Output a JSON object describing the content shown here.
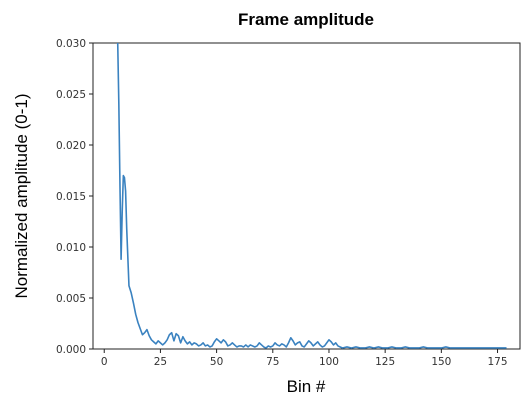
{
  "chart_data": {
    "type": "line",
    "title": "Frame amplitude",
    "xlabel": "Bin #",
    "ylabel": "Normalized amplitude (0-1)",
    "xlim": [
      -5,
      185
    ],
    "ylim": [
      0,
      0.03
    ],
    "xticks": [
      0,
      25,
      50,
      75,
      100,
      125,
      150,
      175
    ],
    "xtick_labels": [
      "0",
      "25",
      "50",
      "75",
      "100",
      "125",
      "150",
      "175"
    ],
    "yticks": [
      0,
      0.005,
      0.01,
      0.015,
      0.02,
      0.025,
      0.03
    ],
    "ytick_labels": [
      "0.000",
      "0.005",
      "0.010",
      "0.015",
      "0.020",
      "0.025",
      "0.030"
    ],
    "grid": false,
    "series": [
      {
        "color": "#3a82c0",
        "x": [
          6,
          6.5,
          7,
          7.5,
          8,
          8.5,
          9,
          9.5,
          10,
          11,
          12,
          13,
          14,
          15,
          16,
          17,
          18,
          19,
          20,
          21,
          22,
          23,
          24,
          25,
          26,
          27,
          28,
          29,
          30,
          31,
          32,
          33,
          34,
          35,
          36,
          37,
          38,
          39,
          40,
          41,
          42,
          43,
          44,
          45,
          46,
          47,
          48,
          49,
          50,
          51,
          52,
          53,
          54,
          55,
          56,
          57,
          58,
          59,
          60,
          61,
          62,
          63,
          64,
          65,
          66,
          67,
          68,
          69,
          70,
          71,
          72,
          73,
          74,
          75,
          76,
          77,
          78,
          79,
          80,
          81,
          82,
          83,
          84,
          85,
          86,
          87,
          88,
          89,
          90,
          91,
          92,
          93,
          94,
          95,
          96,
          97,
          98,
          99,
          100,
          101,
          102,
          103,
          104,
          105,
          106,
          108,
          110,
          112,
          114,
          116,
          118,
          120,
          122,
          124,
          126,
          128,
          130,
          132,
          134,
          136,
          138,
          140,
          142,
          144,
          146,
          148,
          150,
          152,
          154,
          156,
          158,
          160,
          162,
          164,
          166,
          168,
          170,
          172,
          174,
          176,
          178,
          179
        ],
        "y": [
          0.03,
          0.024,
          0.016,
          0.0088,
          0.0135,
          0.017,
          0.0168,
          0.0155,
          0.0118,
          0.0062,
          0.0055,
          0.0045,
          0.0034,
          0.0026,
          0.002,
          0.0014,
          0.0016,
          0.0019,
          0.0013,
          0.0009,
          0.0007,
          0.0005,
          0.0008,
          0.0006,
          0.0004,
          0.0006,
          0.0009,
          0.0014,
          0.0016,
          0.0008,
          0.0015,
          0.0013,
          0.0006,
          0.0012,
          0.0008,
          0.0005,
          0.0007,
          0.0004,
          0.0006,
          0.0005,
          0.0003,
          0.0004,
          0.0006,
          0.0003,
          0.0004,
          0.0002,
          0.0003,
          0.0007,
          0.001,
          0.0008,
          0.0006,
          0.0009,
          0.0007,
          0.0003,
          0.0004,
          0.0006,
          0.0004,
          0.0002,
          0.0003,
          0.0003,
          0.0002,
          0.0004,
          0.0002,
          0.0004,
          0.0003,
          0.0002,
          0.0003,
          0.0006,
          0.0004,
          0.0002,
          0.0001,
          0.0003,
          0.0002,
          0.0003,
          0.0006,
          0.0004,
          0.0003,
          0.0005,
          0.0004,
          0.0002,
          0.0006,
          0.0011,
          0.0008,
          0.0004,
          0.0006,
          0.0007,
          0.0003,
          0.0002,
          0.0005,
          0.0008,
          0.0006,
          0.0003,
          0.0005,
          0.0007,
          0.0004,
          0.0002,
          0.0003,
          0.0006,
          0.0009,
          0.0007,
          0.0004,
          0.0006,
          0.0003,
          0.0002,
          0.0001,
          0.0002,
          0.0001,
          0.0002,
          0.0001,
          0.0001,
          0.0002,
          0.0001,
          0.0002,
          0.0001,
          0.0001,
          0.0002,
          0.0001,
          0.0001,
          0.0002,
          0.0001,
          0.0001,
          0.0001,
          0.0002,
          0.0001,
          0.0001,
          0.0001,
          0.0001,
          0.0002,
          0.0001,
          0.0001,
          0.0001,
          0.0001,
          0.0001,
          0.0001,
          0.0001,
          0.0001,
          0.0001,
          0.0001,
          0.0001,
          0.0001,
          0.0001,
          0.0001
        ]
      }
    ]
  }
}
